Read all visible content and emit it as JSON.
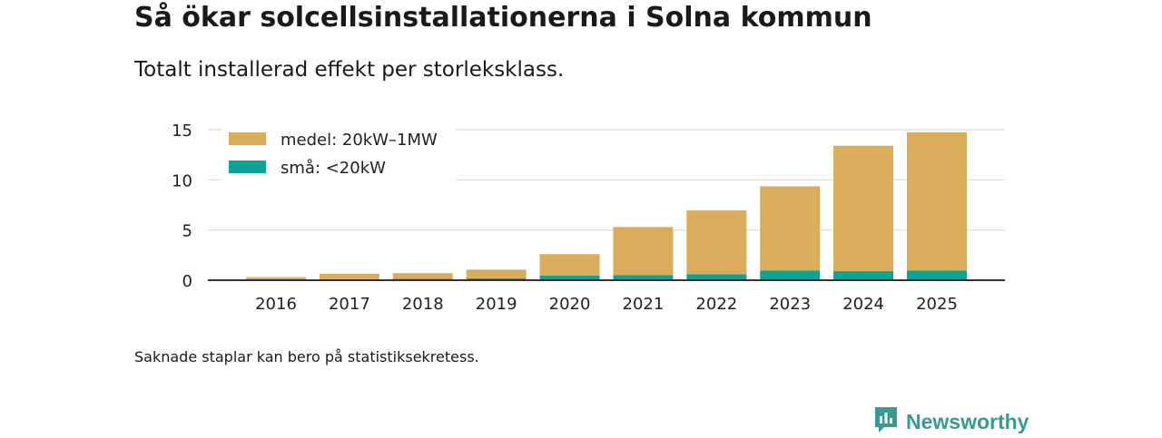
{
  "title": "Så ökar solcellsinstallationerna i Solna kommun",
  "subtitle": "Totalt installerad effekt per storleksklass.",
  "footnote": "Saknade staplar kan bero på statistiksekretess.",
  "brand": {
    "name": "Newsworthy",
    "icon": "newsworthy-logo-icon",
    "color": "#3a9a8f"
  },
  "chart_data": {
    "type": "bar",
    "stacked": true,
    "title": "",
    "xlabel": "",
    "ylabel": "",
    "categories": [
      "2016",
      "2017",
      "2018",
      "2019",
      "2020",
      "2021",
      "2022",
      "2023",
      "2024",
      "2025"
    ],
    "series": [
      {
        "name": "små: <20kW",
        "color": "#0aa496",
        "values": [
          0.05,
          0.1,
          0.15,
          0.2,
          0.45,
          0.5,
          0.6,
          0.95,
          0.9,
          0.95
        ]
      },
      {
        "name": "medel: 20kW–1MW",
        "color": "#d9ad5b",
        "values": [
          0.25,
          0.55,
          0.55,
          0.85,
          2.15,
          4.8,
          6.35,
          8.4,
          12.5,
          13.8
        ]
      }
    ],
    "legend": [
      {
        "label": "medel: 20kW–1MW",
        "color": "#d9ad5b"
      },
      {
        "label": "små: <20kW",
        "color": "#0aa496"
      }
    ],
    "legend_position": "top-left",
    "ylim": [
      0,
      15
    ],
    "yticks": [
      0,
      5,
      10,
      15
    ],
    "grid": true
  }
}
